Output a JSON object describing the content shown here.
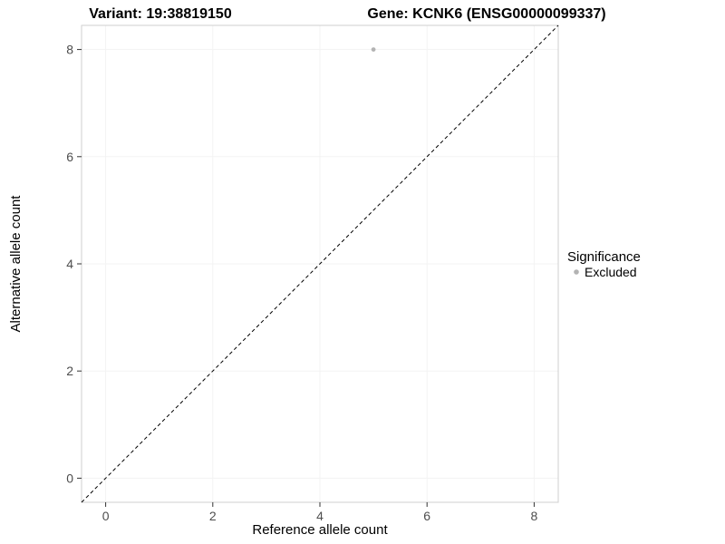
{
  "chart_data": {
    "type": "scatter",
    "title_left": "Variant: 19:38819150",
    "title_right": "Gene: KCNK6 (ENSG00000099337)",
    "xlabel": "Reference allele count",
    "ylabel": "Alternative allele count",
    "xlim": [
      -0.45,
      8.45
    ],
    "ylim": [
      -0.45,
      8.45
    ],
    "xticks": [
      0,
      2,
      4,
      6,
      8
    ],
    "yticks": [
      0,
      2,
      4,
      6,
      8
    ],
    "grid": true,
    "identity_line": {
      "style": "dashed",
      "from": [
        -0.45,
        -0.45
      ],
      "to": [
        8.45,
        8.45
      ],
      "color": "#000000"
    },
    "series": [
      {
        "name": "Excluded",
        "color": "#b3b3b3",
        "points": [
          {
            "x": 5,
            "y": 8
          }
        ]
      }
    ],
    "legend": {
      "title": "Significance",
      "position": "right",
      "entries": [
        {
          "label": "Excluded",
          "color": "#b3b3b3"
        }
      ]
    },
    "colors": {
      "panel_background": "#ffffff",
      "panel_border": "#cfcfcf",
      "grid_major": "#f3f3f3",
      "tick": "#333333",
      "tick_label": "#4d4d4d"
    }
  }
}
